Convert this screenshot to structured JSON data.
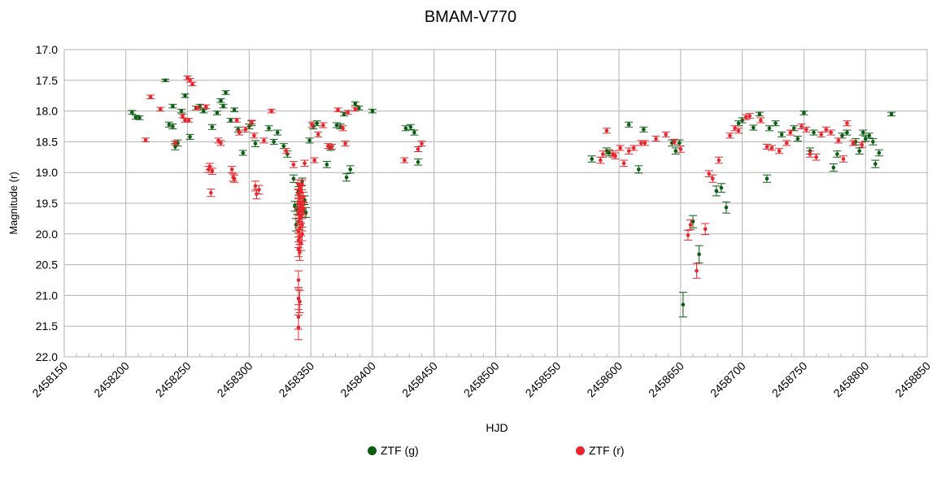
{
  "chart_data": {
    "type": "scatter",
    "title": "BMAM-V770",
    "xlabel": "HJD",
    "ylabel": "Magnitude (r)",
    "xlim": [
      2458150,
      2458850
    ],
    "ylim": [
      17.0,
      22.0
    ],
    "y_inverted": true,
    "x_ticks": [
      "2458150",
      "2458200",
      "2458250",
      "2458300",
      "2458350",
      "2458400",
      "2458450",
      "2458500",
      "2458550",
      "2458600",
      "2458650",
      "2458700",
      "2458750",
      "2458800",
      "2458850"
    ],
    "y_ticks": [
      "17.0",
      "17.5",
      "18.0",
      "18.5",
      "19.0",
      "19.5",
      "20.0",
      "20.5",
      "21.0",
      "21.5",
      "22.0"
    ],
    "grid": true,
    "legend_position": "bottom",
    "series": [
      {
        "name": "ZTF (g)",
        "color": "#0b5d12",
        "points": [
          [
            2458205,
            18.02,
            0.03
          ],
          [
            2458208,
            18.1,
            0.03
          ],
          [
            2458211,
            18.11,
            0.03
          ],
          [
            2458232,
            17.5,
            0.02
          ],
          [
            2458235,
            18.22,
            0.04
          ],
          [
            2458238,
            18.25,
            0.04
          ],
          [
            2458240,
            18.58,
            0.05
          ],
          [
            2458242,
            18.52,
            0.05
          ],
          [
            2458238,
            17.92,
            0.03
          ],
          [
            2458245,
            18.0,
            0.03
          ],
          [
            2458248,
            17.75,
            0.03
          ],
          [
            2458252,
            18.42,
            0.04
          ],
          [
            2458257,
            17.95,
            0.03
          ],
          [
            2458260,
            17.92,
            0.03
          ],
          [
            2458263,
            18.0,
            0.03
          ],
          [
            2458270,
            18.26,
            0.04
          ],
          [
            2458274,
            18.03,
            0.03
          ],
          [
            2458277,
            17.83,
            0.03
          ],
          [
            2458279,
            17.92,
            0.03
          ],
          [
            2458281,
            17.7,
            0.03
          ],
          [
            2458285,
            18.15,
            0.03
          ],
          [
            2458288,
            17.98,
            0.03
          ],
          [
            2458291,
            18.3,
            0.04
          ],
          [
            2458295,
            18.68,
            0.04
          ],
          [
            2458300,
            18.25,
            0.04
          ],
          [
            2458302,
            18.2,
            0.04
          ],
          [
            2458305,
            18.53,
            0.05
          ],
          [
            2458316,
            18.28,
            0.04
          ],
          [
            2458320,
            18.5,
            0.04
          ],
          [
            2458323,
            18.35,
            0.04
          ],
          [
            2458328,
            18.57,
            0.04
          ],
          [
            2458331,
            18.7,
            0.05
          ],
          [
            2458336,
            19.1,
            0.06
          ],
          [
            2458337,
            19.55,
            0.08
          ],
          [
            2458338,
            19.85,
            0.1
          ],
          [
            2458339,
            19.6,
            0.08
          ],
          [
            2458340,
            19.3,
            0.07
          ],
          [
            2458341,
            19.25,
            0.07
          ],
          [
            2458342,
            19.55,
            0.08
          ],
          [
            2458343,
            19.15,
            0.06
          ],
          [
            2458344,
            19.6,
            0.08
          ],
          [
            2458345,
            19.45,
            0.07
          ],
          [
            2458346,
            19.65,
            0.08
          ],
          [
            2458349,
            18.48,
            0.04
          ],
          [
            2458352,
            18.25,
            0.04
          ],
          [
            2458355,
            18.2,
            0.04
          ],
          [
            2458363,
            18.87,
            0.05
          ],
          [
            2458366,
            18.6,
            0.04
          ],
          [
            2458371,
            18.23,
            0.04
          ],
          [
            2458374,
            18.25,
            0.04
          ],
          [
            2458377,
            18.05,
            0.03
          ],
          [
            2458379,
            19.08,
            0.06
          ],
          [
            2458382,
            18.95,
            0.06
          ],
          [
            2458386,
            17.88,
            0.03
          ],
          [
            2458389,
            17.95,
            0.03
          ],
          [
            2458400,
            18.0,
            0.03
          ],
          [
            2458427,
            18.28,
            0.04
          ],
          [
            2458431,
            18.26,
            0.04
          ],
          [
            2458434,
            18.35,
            0.04
          ],
          [
            2458437,
            18.83,
            0.05
          ],
          [
            2458578,
            18.78,
            0.05
          ],
          [
            2458590,
            18.65,
            0.05
          ],
          [
            2458592,
            18.68,
            0.05
          ],
          [
            2458608,
            18.22,
            0.04
          ],
          [
            2458616,
            18.95,
            0.06
          ],
          [
            2458620,
            18.3,
            0.04
          ],
          [
            2458643,
            18.52,
            0.05
          ],
          [
            2458646,
            18.65,
            0.05
          ],
          [
            2458649,
            18.52,
            0.05
          ],
          [
            2458652,
            21.15,
            0.2
          ],
          [
            2458660,
            19.8,
            0.1
          ],
          [
            2458665,
            20.33,
            0.14
          ],
          [
            2458679,
            19.3,
            0.08
          ],
          [
            2458683,
            19.25,
            0.07
          ],
          [
            2458687,
            19.57,
            0.09
          ],
          [
            2458697,
            18.2,
            0.04
          ],
          [
            2458700,
            18.15,
            0.04
          ],
          [
            2458709,
            18.27,
            0.04
          ],
          [
            2458714,
            18.05,
            0.03
          ],
          [
            2458720,
            19.1,
            0.06
          ],
          [
            2458722,
            18.28,
            0.04
          ],
          [
            2458727,
            18.2,
            0.04
          ],
          [
            2458732,
            18.38,
            0.04
          ],
          [
            2458742,
            18.28,
            0.04
          ],
          [
            2458745,
            18.45,
            0.04
          ],
          [
            2458750,
            18.03,
            0.03
          ],
          [
            2458755,
            18.65,
            0.05
          ],
          [
            2458758,
            18.35,
            0.04
          ],
          [
            2458774,
            18.92,
            0.06
          ],
          [
            2458777,
            18.7,
            0.05
          ],
          [
            2458781,
            18.4,
            0.04
          ],
          [
            2458785,
            18.35,
            0.04
          ],
          [
            2458792,
            18.5,
            0.05
          ],
          [
            2458795,
            18.65,
            0.05
          ],
          [
            2458798,
            18.35,
            0.04
          ],
          [
            2458800,
            18.45,
            0.04
          ],
          [
            2458803,
            18.4,
            0.04
          ],
          [
            2458806,
            18.5,
            0.05
          ],
          [
            2458808,
            18.86,
            0.06
          ],
          [
            2458811,
            18.68,
            0.05
          ],
          [
            2458821,
            18.05,
            0.03
          ]
        ]
      },
      {
        "name": "ZTF (r)",
        "color": "#e8262d",
        "points": [
          [
            2458216,
            18.47,
            0.03
          ],
          [
            2458220,
            17.77,
            0.03
          ],
          [
            2458228,
            17.97,
            0.03
          ],
          [
            2458240,
            18.52,
            0.03
          ],
          [
            2458246,
            18.08,
            0.03
          ],
          [
            2458248,
            18.15,
            0.03
          ],
          [
            2458250,
            17.46,
            0.03
          ],
          [
            2458251,
            18.15,
            0.03
          ],
          [
            2458252,
            17.5,
            0.03
          ],
          [
            2458254,
            17.56,
            0.03
          ],
          [
            2458258,
            17.95,
            0.03
          ],
          [
            2458265,
            17.93,
            0.03
          ],
          [
            2458267,
            18.95,
            0.05
          ],
          [
            2458268,
            18.9,
            0.05
          ],
          [
            2458269,
            19.33,
            0.06
          ],
          [
            2458270,
            18.98,
            0.05
          ],
          [
            2458275,
            18.48,
            0.04
          ],
          [
            2458277,
            18.52,
            0.04
          ],
          [
            2458286,
            18.95,
            0.05
          ],
          [
            2458287,
            19.08,
            0.06
          ],
          [
            2458288,
            19.1,
            0.06
          ],
          [
            2458290,
            18.15,
            0.03
          ],
          [
            2458292,
            18.35,
            0.04
          ],
          [
            2458297,
            18.3,
            0.04
          ],
          [
            2458302,
            18.18,
            0.03
          ],
          [
            2458304,
            18.4,
            0.04
          ],
          [
            2458305,
            19.22,
            0.08
          ],
          [
            2458306,
            19.35,
            0.08
          ],
          [
            2458308,
            19.28,
            0.07
          ],
          [
            2458312,
            18.48,
            0.04
          ],
          [
            2458318,
            18.0,
            0.03
          ],
          [
            2458330,
            18.65,
            0.04
          ],
          [
            2458336,
            18.87,
            0.05
          ],
          [
            2458340,
            19.2,
            0.08
          ],
          [
            2458340,
            19.35,
            0.08
          ],
          [
            2458340,
            19.5,
            0.09
          ],
          [
            2458340,
            19.65,
            0.09
          ],
          [
            2458340,
            19.8,
            0.1
          ],
          [
            2458340,
            19.95,
            0.1
          ],
          [
            2458340,
            20.1,
            0.12
          ],
          [
            2458340,
            20.25,
            0.12
          ],
          [
            2458340,
            20.75,
            0.15
          ],
          [
            2458340,
            21.05,
            0.18
          ],
          [
            2458340,
            21.35,
            0.2
          ],
          [
            2458340,
            21.52,
            0.2
          ],
          [
            2458341,
            19.25,
            0.08
          ],
          [
            2458341,
            19.42,
            0.08
          ],
          [
            2458341,
            19.6,
            0.09
          ],
          [
            2458341,
            19.75,
            0.1
          ],
          [
            2458341,
            19.9,
            0.1
          ],
          [
            2458341,
            20.05,
            0.12
          ],
          [
            2458341,
            20.3,
            0.13
          ],
          [
            2458341,
            21.1,
            0.18
          ],
          [
            2458342,
            19.3,
            0.08
          ],
          [
            2458342,
            19.55,
            0.09
          ],
          [
            2458342,
            19.72,
            0.1
          ],
          [
            2458342,
            20.15,
            0.12
          ],
          [
            2458343,
            19.2,
            0.08
          ],
          [
            2458343,
            19.48,
            0.09
          ],
          [
            2458343,
            19.62,
            0.09
          ],
          [
            2458343,
            19.85,
            0.1
          ],
          [
            2458343,
            20.0,
            0.11
          ],
          [
            2458344,
            19.4,
            0.08
          ],
          [
            2458344,
            19.58,
            0.09
          ],
          [
            2458345,
            18.85,
            0.05
          ],
          [
            2458351,
            18.22,
            0.04
          ],
          [
            2458353,
            18.8,
            0.04
          ],
          [
            2458356,
            18.38,
            0.04
          ],
          [
            2458360,
            18.23,
            0.04
          ],
          [
            2458364,
            18.57,
            0.04
          ],
          [
            2458367,
            18.58,
            0.04
          ],
          [
            2458372,
            17.98,
            0.03
          ],
          [
            2458376,
            18.28,
            0.04
          ],
          [
            2458378,
            18.53,
            0.04
          ],
          [
            2458380,
            18.02,
            0.03
          ],
          [
            2458386,
            17.97,
            0.03
          ],
          [
            2458426,
            18.8,
            0.04
          ],
          [
            2458437,
            18.62,
            0.04
          ],
          [
            2458440,
            18.53,
            0.04
          ],
          [
            2458585,
            18.8,
            0.05
          ],
          [
            2458587,
            18.7,
            0.05
          ],
          [
            2458590,
            18.32,
            0.04
          ],
          [
            2458595,
            18.7,
            0.05
          ],
          [
            2458597,
            18.73,
            0.05
          ],
          [
            2458601,
            18.6,
            0.04
          ],
          [
            2458604,
            18.85,
            0.05
          ],
          [
            2458608,
            18.65,
            0.05
          ],
          [
            2458612,
            18.6,
            0.04
          ],
          [
            2458618,
            18.52,
            0.04
          ],
          [
            2458621,
            18.52,
            0.04
          ],
          [
            2458630,
            18.45,
            0.04
          ],
          [
            2458638,
            18.38,
            0.04
          ],
          [
            2458645,
            18.5,
            0.04
          ],
          [
            2458650,
            18.62,
            0.05
          ],
          [
            2458656,
            20.02,
            0.08
          ],
          [
            2458658,
            19.85,
            0.08
          ],
          [
            2458663,
            20.6,
            0.12
          ],
          [
            2458670,
            19.92,
            0.09
          ],
          [
            2458673,
            19.02,
            0.05
          ],
          [
            2458676,
            19.1,
            0.06
          ],
          [
            2458681,
            18.8,
            0.05
          ],
          [
            2458690,
            18.4,
            0.04
          ],
          [
            2458694,
            18.28,
            0.04
          ],
          [
            2458697,
            18.32,
            0.04
          ],
          [
            2458703,
            18.1,
            0.04
          ],
          [
            2458706,
            18.08,
            0.04
          ],
          [
            2458715,
            18.15,
            0.04
          ],
          [
            2458720,
            18.58,
            0.04
          ],
          [
            2458724,
            18.6,
            0.04
          ],
          [
            2458730,
            18.65,
            0.04
          ],
          [
            2458736,
            18.52,
            0.04
          ],
          [
            2458739,
            18.35,
            0.04
          ],
          [
            2458748,
            18.25,
            0.04
          ],
          [
            2458752,
            18.3,
            0.04
          ],
          [
            2458755,
            18.7,
            0.05
          ],
          [
            2458760,
            18.75,
            0.05
          ],
          [
            2458764,
            18.38,
            0.04
          ],
          [
            2458768,
            18.3,
            0.04
          ],
          [
            2458772,
            18.35,
            0.04
          ],
          [
            2458778,
            18.48,
            0.04
          ],
          [
            2458782,
            18.78,
            0.05
          ],
          [
            2458785,
            18.2,
            0.04
          ],
          [
            2458790,
            18.52,
            0.04
          ],
          [
            2458797,
            18.55,
            0.04
          ]
        ]
      }
    ]
  }
}
